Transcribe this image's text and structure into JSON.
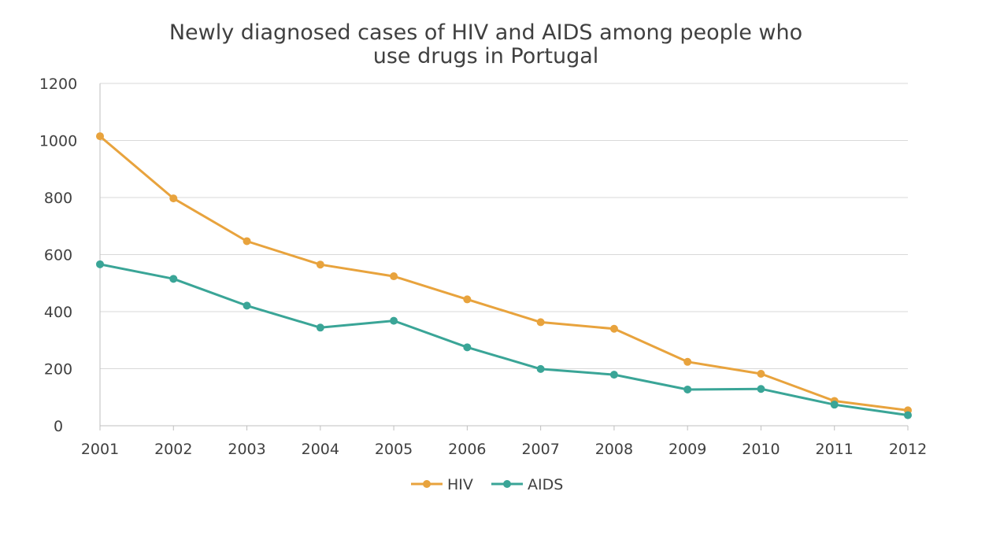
{
  "chart_data": {
    "type": "line",
    "title_lines": [
      "Newly diagnosed cases of HIV and AIDS among people who",
      "use drugs in Portugal"
    ],
    "categories": [
      "2001",
      "2002",
      "2003",
      "2004",
      "2005",
      "2006",
      "2007",
      "2008",
      "2009",
      "2010",
      "2011",
      "2012"
    ],
    "series": [
      {
        "name": "HIV",
        "color": "#E8A33D",
        "values": [
          1015,
          797,
          647,
          565,
          524,
          443,
          363,
          340,
          224,
          182,
          87,
          54
        ]
      },
      {
        "name": "AIDS",
        "color": "#3AA597",
        "values": [
          566,
          515,
          421,
          344,
          368,
          275,
          199,
          179,
          127,
          129,
          74,
          37
        ]
      }
    ],
    "y_ticks": [
      "0",
      "200",
      "400",
      "600",
      "800",
      "1000",
      "1200"
    ],
    "ylim": [
      0,
      1200
    ],
    "grid": true,
    "legend_position": "bottom"
  }
}
